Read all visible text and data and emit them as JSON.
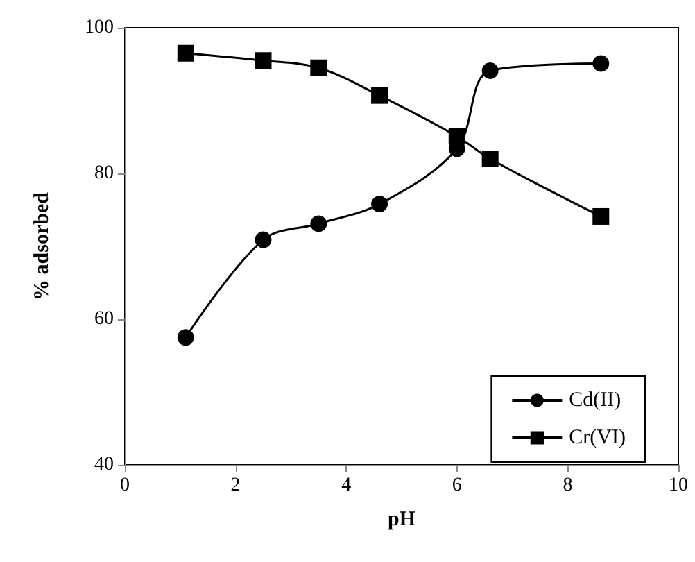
{
  "chart_data": {
    "type": "line",
    "xlabel": "pH",
    "ylabel": "% adsorbed",
    "xlim": [
      0,
      10
    ],
    "xticks": [
      0,
      2,
      4,
      6,
      8,
      10
    ],
    "ylim": [
      40,
      100
    ],
    "yticks": [
      40,
      60,
      80,
      100
    ],
    "grid": false,
    "legend": "bottom right",
    "line_style": "solid",
    "series": [
      {
        "name": "Cd(II)",
        "color": "#000000",
        "marker": "circle",
        "x": [
          1.1,
          2.5,
          3.5,
          4.6,
          6.0,
          6.6,
          8.6
        ],
        "values": [
          57.5,
          70.9,
          73.1,
          75.8,
          83.4,
          94.1,
          95.1
        ]
      },
      {
        "name": "Cr(VI)",
        "color": "#000000",
        "marker": "square",
        "x": [
          1.1,
          2.5,
          3.5,
          4.6,
          6.0,
          6.6,
          8.6
        ],
        "values": [
          96.5,
          95.5,
          94.5,
          90.7,
          85.1,
          82.0,
          74.1
        ]
      }
    ]
  }
}
